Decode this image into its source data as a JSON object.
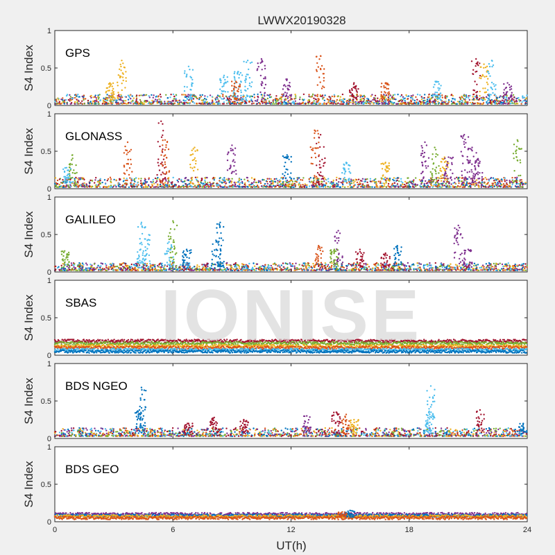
{
  "figure": {
    "title": "LWWX20190328",
    "watermark": "IONISE",
    "xlabel": "UT(h)",
    "ylabel": "S4 Index"
  },
  "colors": {
    "blue": "#0072bd",
    "orange": "#d95319",
    "yellow": "#edb120",
    "purple": "#7e2f8e",
    "green": "#77ac30",
    "lightblue": "#4dbeee",
    "darkred": "#a2142f"
  },
  "chart_data": [
    {
      "type": "scatter",
      "panel": "GPS",
      "label": "GPS",
      "xlim": [
        0,
        24
      ],
      "ylim": [
        0,
        1
      ],
      "xticks": [
        "0",
        "6",
        "12",
        "18",
        "24"
      ],
      "yticks": [
        "0",
        "0.5",
        "1"
      ],
      "baseline_range": [
        0.02,
        0.15
      ],
      "bursts": [
        [
          3.4,
          0.6,
          "yellow"
        ],
        [
          2.8,
          0.3,
          "yellow"
        ],
        [
          6.8,
          0.52,
          "lightblue"
        ],
        [
          8.6,
          0.4,
          "lightblue"
        ],
        [
          9.3,
          0.45,
          "lightblue"
        ],
        [
          9.8,
          0.6,
          "lightblue"
        ],
        [
          10.5,
          0.62,
          "purple"
        ],
        [
          9.2,
          0.32,
          "orange"
        ],
        [
          11.8,
          0.35,
          "purple"
        ],
        [
          13.5,
          0.66,
          "orange"
        ],
        [
          15.2,
          0.3,
          "darkred"
        ],
        [
          16.8,
          0.3,
          "orange"
        ],
        [
          21.4,
          0.62,
          "darkred"
        ],
        [
          21.8,
          0.55,
          "yellow"
        ],
        [
          22.2,
          0.6,
          "lightblue"
        ],
        [
          19.4,
          0.32,
          "lightblue"
        ],
        [
          23.0,
          0.3,
          "purple"
        ]
      ]
    },
    {
      "type": "scatter",
      "panel": "GLONASS",
      "label": "GLONASS",
      "xlim": [
        0,
        24
      ],
      "ylim": [
        0,
        1
      ],
      "xticks": [
        "0",
        "6",
        "12",
        "18",
        "24"
      ],
      "yticks": [
        "0",
        "0.5",
        "1"
      ],
      "baseline_range": [
        0.02,
        0.15
      ],
      "bursts": [
        [
          0.9,
          0.45,
          "green"
        ],
        [
          3.7,
          0.62,
          "orange"
        ],
        [
          5.4,
          0.9,
          "darkred"
        ],
        [
          5.6,
          0.65,
          "orange"
        ],
        [
          7.1,
          0.55,
          "yellow"
        ],
        [
          9.0,
          0.58,
          "purple"
        ],
        [
          11.8,
          0.45,
          "blue"
        ],
        [
          13.2,
          0.78,
          "orange"
        ],
        [
          13.5,
          0.72,
          "darkred"
        ],
        [
          14.8,
          0.35,
          "lightblue"
        ],
        [
          16.8,
          0.35,
          "yellow"
        ],
        [
          18.8,
          0.62,
          "purple"
        ],
        [
          19.3,
          0.55,
          "green"
        ],
        [
          19.8,
          0.42,
          "yellow"
        ],
        [
          20.0,
          0.42,
          "purple"
        ],
        [
          20.8,
          0.72,
          "purple"
        ],
        [
          21.2,
          0.55,
          "purple"
        ],
        [
          21.5,
          0.4,
          "purple"
        ],
        [
          23.5,
          0.65,
          "green"
        ],
        [
          0.6,
          0.28,
          "lightblue"
        ]
      ]
    },
    {
      "type": "scatter",
      "panel": "GALILEO",
      "label": "GALILEO",
      "xlim": [
        0,
        24
      ],
      "ylim": [
        0,
        1
      ],
      "xticks": [
        "0",
        "6",
        "12",
        "18",
        "24"
      ],
      "yticks": [
        "0",
        "0.5",
        "1"
      ],
      "baseline_range": [
        0.02,
        0.12
      ],
      "bursts": [
        [
          0.5,
          0.28,
          "green"
        ],
        [
          4.4,
          0.66,
          "lightblue"
        ],
        [
          4.6,
          0.6,
          "lightblue"
        ],
        [
          5.8,
          0.4,
          "lightblue"
        ],
        [
          6.0,
          0.68,
          "green"
        ],
        [
          6.7,
          0.3,
          "blue"
        ],
        [
          8.4,
          0.66,
          "blue"
        ],
        [
          8.2,
          0.4,
          "blue"
        ],
        [
          13.4,
          0.35,
          "orange"
        ],
        [
          14.4,
          0.55,
          "purple"
        ],
        [
          14.2,
          0.3,
          "green"
        ],
        [
          15.5,
          0.3,
          "darkred"
        ],
        [
          16.8,
          0.25,
          "darkred"
        ],
        [
          17.4,
          0.35,
          "blue"
        ],
        [
          20.5,
          0.62,
          "purple"
        ],
        [
          21.0,
          0.3,
          "purple"
        ]
      ]
    },
    {
      "type": "scatter",
      "panel": "SBAS",
      "label": "SBAS",
      "xlim": [
        0,
        24
      ],
      "ylim": [
        0,
        1
      ],
      "xticks": [
        "0",
        "6",
        "12",
        "18",
        "24"
      ],
      "yticks": [
        "0",
        "0.5",
        "1"
      ],
      "bands": [
        [
          0.19,
          "darkred"
        ],
        [
          0.16,
          "green"
        ],
        [
          0.12,
          "yellow"
        ],
        [
          0.1,
          "orange"
        ],
        [
          0.07,
          "lightblue"
        ],
        [
          0.05,
          "blue"
        ]
      ],
      "bursts": []
    },
    {
      "type": "scatter",
      "panel": "BDS NGEO",
      "label": "BDS NGEO",
      "xlim": [
        0,
        24
      ],
      "ylim": [
        0,
        1
      ],
      "xticks": [
        "0",
        "6",
        "12",
        "18",
        "24"
      ],
      "yticks": [
        "0",
        "0.5",
        "1"
      ],
      "baseline_range": [
        0.03,
        0.14
      ],
      "bursts": [
        [
          4.4,
          0.68,
          "blue"
        ],
        [
          4.3,
          0.38,
          "blue"
        ],
        [
          6.8,
          0.2,
          "darkred"
        ],
        [
          8.1,
          0.28,
          "darkred"
        ],
        [
          9.6,
          0.25,
          "darkred"
        ],
        [
          12.8,
          0.3,
          "purple"
        ],
        [
          14.3,
          0.35,
          "darkred"
        ],
        [
          14.8,
          0.32,
          "orange"
        ],
        [
          15.2,
          0.25,
          "yellow"
        ],
        [
          19.1,
          0.7,
          "lightblue"
        ],
        [
          19.0,
          0.35,
          "lightblue"
        ],
        [
          21.6,
          0.38,
          "darkred"
        ],
        [
          23.8,
          0.2,
          "blue"
        ]
      ]
    },
    {
      "type": "scatter",
      "panel": "BDS GEO",
      "label": "BDS GEO",
      "xlim": [
        0,
        24
      ],
      "ylim": [
        0,
        1
      ],
      "xticks": [
        "0",
        "6",
        "12",
        "18",
        "24"
      ],
      "yticks": [
        "0",
        "0.5",
        "1"
      ],
      "bands": [
        [
          0.1,
          "purple"
        ],
        [
          0.08,
          "blue"
        ],
        [
          0.07,
          "yellow"
        ],
        [
          0.05,
          "orange"
        ]
      ],
      "bursts": [
        [
          15.0,
          0.15,
          "blue"
        ],
        [
          14.6,
          0.13,
          "orange"
        ]
      ]
    }
  ]
}
